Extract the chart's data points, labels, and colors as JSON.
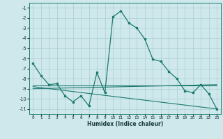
{
  "xlabel": "Humidex (Indice chaleur)",
  "background_color": "#cfe8ec",
  "grid_color": "#aacdd4",
  "line_color": "#1a7a6e",
  "xlim": [
    -0.5,
    23.5
  ],
  "ylim": [
    -11.5,
    -0.5
  ],
  "yticks": [
    -1,
    -2,
    -3,
    -4,
    -5,
    -6,
    -7,
    -8,
    -9,
    -10,
    -11
  ],
  "xticks": [
    0,
    1,
    2,
    3,
    4,
    5,
    6,
    7,
    8,
    9,
    10,
    11,
    12,
    13,
    14,
    15,
    16,
    17,
    18,
    19,
    20,
    21,
    22,
    23
  ],
  "series1_x": [
    0,
    1,
    2,
    3,
    4,
    5,
    6,
    7,
    8,
    9,
    10,
    11,
    12,
    13,
    14,
    15,
    16,
    17,
    18,
    19,
    20,
    21,
    22,
    23
  ],
  "series1_y": [
    -6.5,
    -7.7,
    -8.6,
    -8.5,
    -9.7,
    -10.3,
    -9.7,
    -10.7,
    -7.4,
    -9.4,
    -1.9,
    -1.3,
    -2.5,
    -3.0,
    -4.1,
    -6.1,
    -6.3,
    -7.3,
    -8.0,
    -9.2,
    -9.4,
    -8.6,
    -9.5,
    -11.0
  ],
  "series2_x": [
    0,
    23
  ],
  "series2_y": [
    -8.7,
    -8.7
  ],
  "series3_x": [
    0,
    23
  ],
  "series3_y": [
    -8.8,
    -11.0
  ],
  "series4_x": [
    0,
    23
  ],
  "series4_y": [
    -9.0,
    -8.6
  ]
}
